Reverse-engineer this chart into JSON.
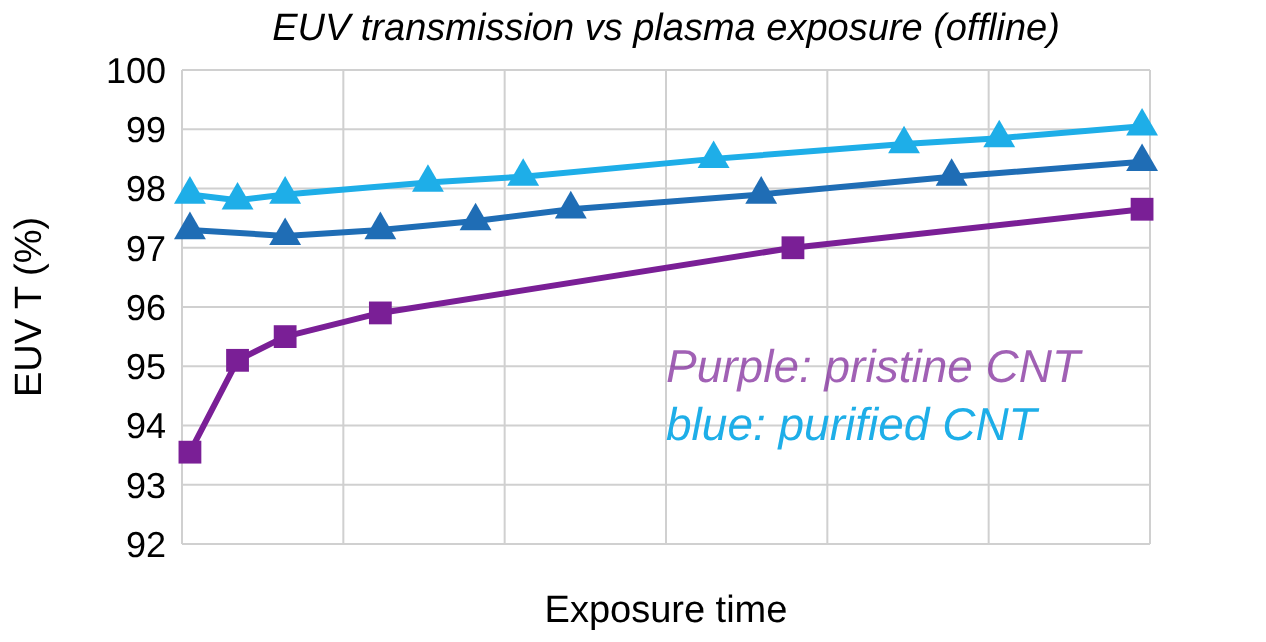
{
  "chart_data": {
    "type": "line",
    "title": "EUV transmission vs plasma exposure (offline)",
    "xlabel": "Exposure time",
    "ylabel": "EUV T (%)",
    "categories": [
      null,
      null,
      null,
      null,
      null,
      null,
      null,
      null,
      null,
      null,
      null,
      null,
      null,
      null,
      null,
      null,
      null,
      null,
      null,
      null,
      null,
      null,
      null,
      null,
      null,
      null,
      null,
      null,
      null,
      null,
      null,
      null,
      null,
      null,
      null,
      null,
      null,
      null,
      null,
      null,
      null,
      null,
      null,
      null,
      null,
      null,
      null,
      null,
      null,
      null,
      null,
      null,
      null,
      null,
      null,
      null,
      null,
      null,
      null,
      null,
      null
    ],
    "ylim": [
      92,
      100
    ],
    "yticks": [
      92,
      93,
      94,
      95,
      96,
      97,
      98,
      99,
      100
    ],
    "grid": true,
    "line_style": "solid",
    "annotations": [
      "Purple: pristine CNT",
      "blue: purified CNT"
    ],
    "series": [
      {
        "color": "#7a1f96",
        "marker": "square",
        "values": [
          93.55,
          null,
          null,
          95.1,
          null,
          null,
          95.5,
          null,
          null,
          null,
          null,
          null,
          95.9,
          null,
          null,
          null,
          null,
          null,
          null,
          null,
          null,
          null,
          null,
          null,
          null,
          null,
          null,
          null,
          null,
          null,
          null,
          null,
          null,
          null,
          null,
          null,
          null,
          null,
          97.0,
          null,
          null,
          null,
          null,
          null,
          null,
          null,
          null,
          null,
          null,
          null,
          null,
          null,
          null,
          null,
          null,
          null,
          null,
          null,
          null,
          null,
          97.65
        ]
      },
      {
        "color": "#1eaee8",
        "marker": "triangle",
        "values": [
          97.9,
          null,
          null,
          97.8,
          null,
          null,
          97.9,
          null,
          null,
          null,
          null,
          null,
          null,
          null,
          null,
          98.1,
          null,
          null,
          null,
          null,
          null,
          98.2,
          null,
          null,
          null,
          null,
          null,
          null,
          null,
          null,
          null,
          null,
          null,
          98.5,
          null,
          null,
          null,
          null,
          null,
          null,
          null,
          null,
          null,
          null,
          null,
          98.75,
          null,
          null,
          null,
          null,
          null,
          98.85,
          null,
          null,
          null,
          null,
          null,
          null,
          null,
          null,
          99.05
        ]
      },
      {
        "color": "#1f6db5",
        "marker": "triangle",
        "values": [
          97.3,
          null,
          null,
          null,
          null,
          null,
          97.2,
          null,
          null,
          null,
          null,
          null,
          97.3,
          null,
          null,
          null,
          null,
          null,
          97.45,
          null,
          null,
          null,
          null,
          null,
          97.65,
          null,
          null,
          null,
          null,
          null,
          null,
          null,
          null,
          null,
          null,
          null,
          97.9,
          null,
          null,
          null,
          null,
          null,
          null,
          null,
          null,
          null,
          null,
          null,
          98.2,
          null,
          null,
          null,
          null,
          null,
          null,
          null,
          null,
          null,
          null,
          null,
          98.45
        ]
      }
    ]
  }
}
